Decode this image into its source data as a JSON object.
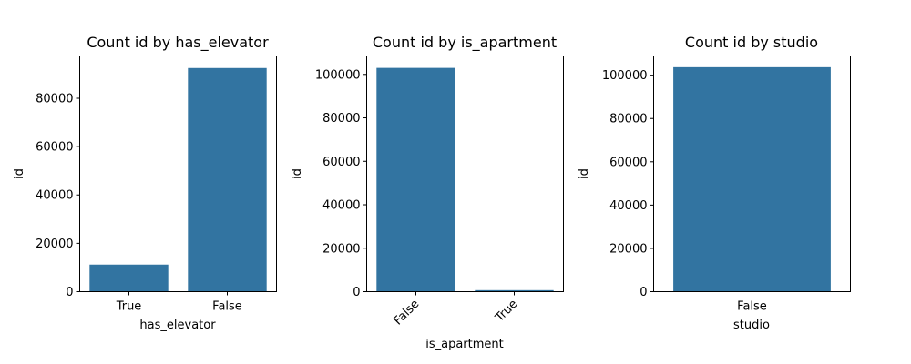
{
  "colors": {
    "bar": "#3274a1",
    "axis": "#000000",
    "background": "#ffffff"
  },
  "chart_data": [
    {
      "type": "bar",
      "title": "Count id by has_elevator",
      "xlabel": "has_elevator",
      "ylabel": "id",
      "categories": [
        "True",
        "False"
      ],
      "values": [
        11200,
        92500
      ],
      "ylim": [
        0,
        97500
      ],
      "yticks": [
        0,
        20000,
        40000,
        60000,
        80000
      ],
      "ytick_labels": [
        "0",
        "20000",
        "40000",
        "60000",
        "80000"
      ],
      "xtick_rotation": 0,
      "grid": false
    },
    {
      "type": "bar",
      "title": "Count id by is_apartment",
      "xlabel": "is_apartment",
      "ylabel": "id",
      "categories": [
        "False",
        "True"
      ],
      "values": [
        103000,
        700
      ],
      "ylim": [
        0,
        108500
      ],
      "yticks": [
        0,
        20000,
        40000,
        60000,
        80000,
        100000
      ],
      "ytick_labels": [
        "0",
        "20000",
        "40000",
        "60000",
        "80000",
        "100000"
      ],
      "xtick_rotation": -45,
      "grid": false
    },
    {
      "type": "bar",
      "title": "Count id by studio",
      "xlabel": "studio",
      "ylabel": "id",
      "categories": [
        "False"
      ],
      "values": [
        103700
      ],
      "ylim": [
        0,
        108900
      ],
      "yticks": [
        0,
        20000,
        40000,
        60000,
        80000,
        100000
      ],
      "ytick_labels": [
        "0",
        "20000",
        "40000",
        "60000",
        "80000",
        "100000"
      ],
      "xtick_rotation": 0,
      "grid": false
    }
  ]
}
